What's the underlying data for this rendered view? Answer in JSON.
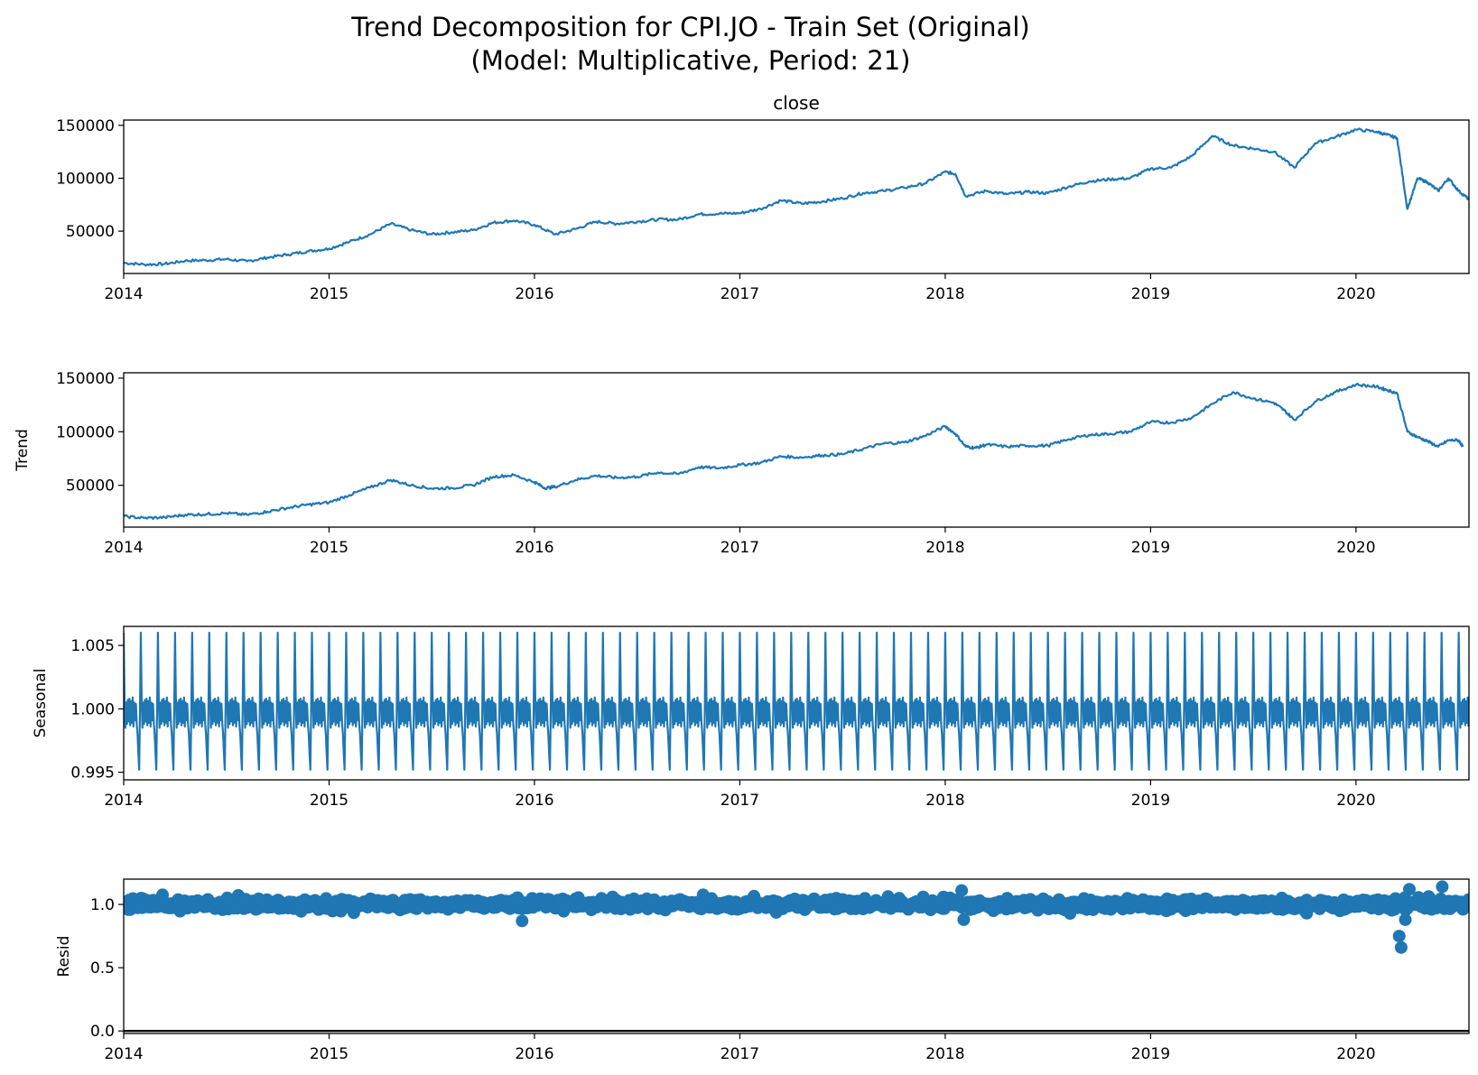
{
  "title_line1": "Trend Decomposition for CPI.JO - Train Set (Original)",
  "title_line2": "(Model: Multiplicative, Period: 21)",
  "chart_data": [
    {
      "type": "line",
      "title": "close",
      "ylabel": "",
      "x_ticks": [
        "2014",
        "2015",
        "2016",
        "2017",
        "2018",
        "2019",
        "2020"
      ],
      "x_range": [
        2014.0,
        2020.55
      ],
      "ylim": [
        10000,
        155000
      ],
      "y_ticks": [
        50000,
        100000,
        150000
      ],
      "y_tick_labels": [
        "50000",
        "100000",
        "150000"
      ],
      "color": "#1f77b4",
      "series": [
        {
          "x": [
            2014.0,
            2014.1,
            2014.2,
            2014.3,
            2014.4,
            2014.5,
            2014.6,
            2014.7,
            2014.8,
            2014.9,
            2015.0,
            2015.1,
            2015.2,
            2015.3,
            2015.4,
            2015.5,
            2015.6,
            2015.7,
            2015.8,
            2015.9,
            2016.0,
            2016.1,
            2016.2,
            2016.3,
            2016.4,
            2016.5,
            2016.6,
            2016.7,
            2016.8,
            2016.9,
            2017.0,
            2017.1,
            2017.2,
            2017.3,
            2017.4,
            2017.5,
            2017.6,
            2017.7,
            2017.8,
            2017.9,
            2018.0,
            2018.05,
            2018.1,
            2018.2,
            2018.3,
            2018.4,
            2018.5,
            2018.6,
            2018.7,
            2018.8,
            2018.9,
            2019.0,
            2019.1,
            2019.2,
            2019.3,
            2019.4,
            2019.5,
            2019.6,
            2019.7,
            2019.8,
            2019.9,
            2020.0,
            2020.1,
            2020.15,
            2020.2,
            2020.25,
            2020.3,
            2020.35,
            2020.4,
            2020.45,
            2020.5,
            2020.55
          ],
          "y": [
            20000,
            18500,
            19000,
            22000,
            22500,
            23500,
            21500,
            25000,
            28000,
            31000,
            33500,
            40000,
            47000,
            57000,
            51000,
            47000,
            49000,
            51000,
            58000,
            60000,
            56000,
            47000,
            52000,
            59000,
            57000,
            59000,
            61000,
            61000,
            66000,
            66500,
            67000,
            71000,
            79000,
            76000,
            78000,
            81000,
            86000,
            88000,
            91000,
            95000,
            106000,
            104000,
            83000,
            88000,
            85000,
            87000,
            86000,
            92000,
            97000,
            99000,
            100000,
            109000,
            110000,
            121000,
            140000,
            131000,
            128000,
            125000,
            110000,
            133000,
            139000,
            146000,
            144000,
            141000,
            138000,
            71000,
            100000,
            96000,
            88000,
            100000,
            88000,
            80000
          ]
        }
      ]
    },
    {
      "type": "line",
      "title": "",
      "ylabel": "Trend",
      "x_ticks": [
        "2014",
        "2015",
        "2016",
        "2017",
        "2018",
        "2019",
        "2020"
      ],
      "x_range": [
        2014.0,
        2020.55
      ],
      "ylim": [
        11000,
        155000
      ],
      "y_ticks": [
        50000,
        100000,
        150000
      ],
      "y_tick_labels": [
        "50000",
        "100000",
        "150000"
      ],
      "color": "#1f77b4",
      "series": [
        {
          "x": [
            2014.0,
            2014.1,
            2014.2,
            2014.3,
            2014.4,
            2014.5,
            2014.6,
            2014.7,
            2014.8,
            2014.9,
            2015.0,
            2015.1,
            2015.2,
            2015.3,
            2015.4,
            2015.5,
            2015.6,
            2015.7,
            2015.8,
            2015.9,
            2016.0,
            2016.05,
            2016.1,
            2016.2,
            2016.3,
            2016.4,
            2016.5,
            2016.6,
            2016.7,
            2016.8,
            2016.9,
            2017.0,
            2017.1,
            2017.2,
            2017.3,
            2017.4,
            2017.5,
            2017.6,
            2017.7,
            2017.8,
            2017.9,
            2018.0,
            2018.05,
            2018.1,
            2018.15,
            2018.2,
            2018.3,
            2018.4,
            2018.5,
            2018.6,
            2018.7,
            2018.8,
            2018.9,
            2019.0,
            2019.1,
            2019.2,
            2019.3,
            2019.4,
            2019.5,
            2019.6,
            2019.65,
            2019.7,
            2019.8,
            2019.9,
            2020.0,
            2020.1,
            2020.15,
            2020.2,
            2020.25,
            2020.3,
            2020.35,
            2020.4,
            2020.45,
            2020.5,
            2020.52
          ],
          "y": [
            21000,
            19500,
            20000,
            22500,
            23000,
            24000,
            22500,
            25500,
            29000,
            32000,
            34000,
            41000,
            48000,
            55000,
            50000,
            47000,
            47500,
            50000,
            58000,
            59500,
            53000,
            47500,
            48500,
            55000,
            59000,
            57000,
            58000,
            62000,
            60500,
            67000,
            66000,
            69000,
            71000,
            77000,
            76000,
            78000,
            79000,
            84000,
            89000,
            90000,
            96000,
            105000,
            98000,
            86000,
            85000,
            88000,
            86000,
            87000,
            87000,
            93000,
            97000,
            98000,
            100000,
            109000,
            108500,
            113000,
            126000,
            137000,
            131000,
            127000,
            120000,
            111000,
            128000,
            137000,
            144000,
            142000,
            139000,
            136000,
            100000,
            95000,
            91000,
            86000,
            92000,
            92000,
            86000
          ]
        }
      ]
    },
    {
      "type": "line",
      "title": "",
      "ylabel": "Seasonal",
      "x_ticks": [
        "2014",
        "2015",
        "2016",
        "2017",
        "2018",
        "2019",
        "2020"
      ],
      "x_range": [
        2014.0,
        2020.55
      ],
      "ylim": [
        0.9944,
        1.0065
      ],
      "y_ticks": [
        0.995,
        1.0,
        1.005
      ],
      "y_tick_labels": [
        "0.995",
        "1.000",
        "1.005"
      ],
      "color": "#1f77b4",
      "period": 21,
      "periods_per_year": 12,
      "cycle": [
        1.006,
        1.001,
        0.9985,
        1.0005,
        0.9988,
        1.0007,
        0.999,
        1.0008,
        0.9987,
        1.0006,
        0.9989,
        1.0009,
        0.9986,
        1.0005,
        0.9991,
        1.0004,
        0.9988,
        0.998,
        0.9965,
        0.9952,
        1.0
      ]
    },
    {
      "type": "scatter",
      "title": "",
      "ylabel": "Resid",
      "x_ticks": [
        "2014",
        "2015",
        "2016",
        "2017",
        "2018",
        "2019",
        "2020"
      ],
      "x_range": [
        2014.0,
        2020.55
      ],
      "ylim": [
        -0.02,
        1.2
      ],
      "y_ticks": [
        0.0,
        0.5,
        1.0
      ],
      "y_tick_labels": [
        "0.0",
        "0.5",
        "1.0"
      ],
      "color": "#1f77b4",
      "baseline": 0.0,
      "outliers": [
        {
          "x": 2015.94,
          "y": 0.87
        },
        {
          "x": 2018.09,
          "y": 0.88
        },
        {
          "x": 2018.08,
          "y": 1.11
        },
        {
          "x": 2020.21,
          "y": 0.75
        },
        {
          "x": 2020.22,
          "y": 0.66
        },
        {
          "x": 2020.26,
          "y": 1.12
        },
        {
          "x": 2020.42,
          "y": 1.14
        },
        {
          "x": 2019.76,
          "y": 0.93
        },
        {
          "x": 2020.24,
          "y": 0.88
        }
      ]
    }
  ]
}
